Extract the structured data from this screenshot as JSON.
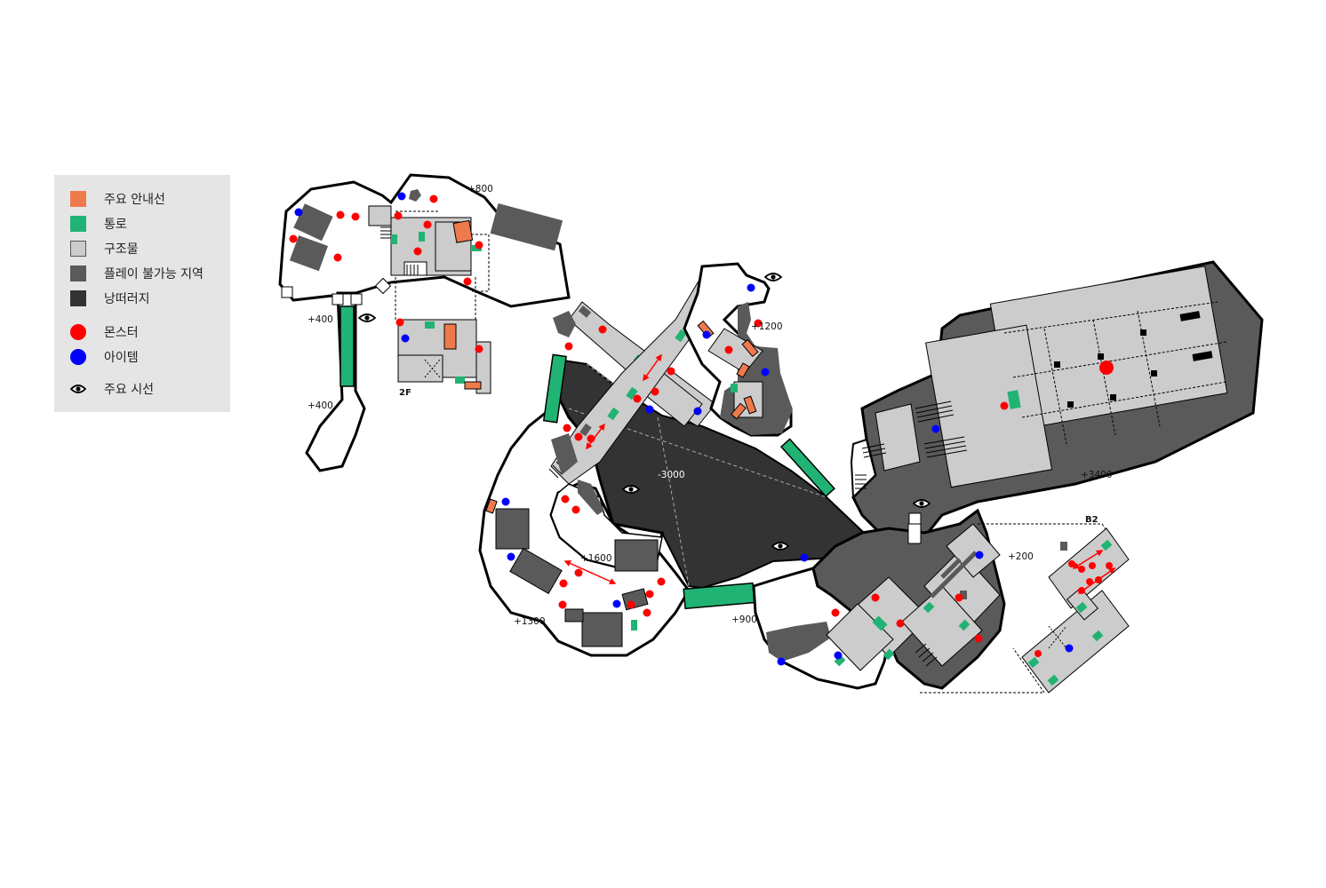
{
  "legend": {
    "guide_label": "주요 안내선",
    "passage_label": "통로",
    "structure_label": "구조물",
    "unplayable_label": "플레이 불가능 지역",
    "cliff_label": "낭떠러지",
    "monster_label": "몬스터",
    "item_label": "아이템",
    "sightline_label": "주요 시선"
  },
  "colors": {
    "guide": "#ee7a4c",
    "passage": "#21b373",
    "structure": "#cccccc",
    "unplayable": "#5a5a5a",
    "cliff": "#333333",
    "monster": "#ff0000",
    "item": "#0000ff",
    "legend_bg": "#e5e5e5"
  },
  "icons": {
    "sightline": "eye-icon"
  },
  "map": {
    "elevations": {
      "e800": "+800",
      "e400_top": "+400",
      "e400_bottom": "+400",
      "e1200": "+1200",
      "e3000": "-3000",
      "e3400": "+3400",
      "e1600": "+1600",
      "e1300": "+1300",
      "e900": "+900",
      "e200": "+200"
    },
    "floors": {
      "f2": "2F",
      "b2": "B2"
    }
  }
}
